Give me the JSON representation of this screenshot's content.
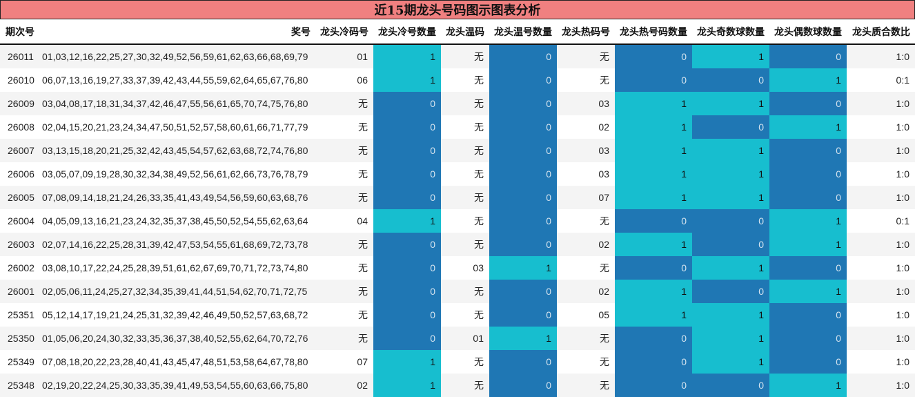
{
  "title": "近15期龙头号码图示图表分析",
  "colors": {
    "title_bg": "#f08080",
    "value_one": "#17becf",
    "value_zero": "#1f77b4",
    "row_alt": "#f4f4f4"
  },
  "columns": [
    "期次号",
    "奖号",
    "龙头冷码号",
    "龙头冷号数量",
    "龙头温码",
    "龙头温号数量",
    "龙头热码号",
    "龙头热号码数量",
    "龙头奇数球数量",
    "龙头偶数球数量",
    "龙头质合数比"
  ],
  "rows": [
    {
      "period": "26011",
      "numbers": "01,03,12,16,22,25,27,30,32,49,52,56,59,61,62,63,66,68,69,79",
      "cold_code": "01",
      "cold_count": "1",
      "warm_code": "无",
      "warm_count": "0",
      "hot_code": "无",
      "hot_count": "0",
      "odd_count": "1",
      "even_count": "0",
      "prime_ratio": "1:0"
    },
    {
      "period": "26010",
      "numbers": "06,07,13,16,19,27,33,37,39,42,43,44,55,59,62,64,65,67,76,80",
      "cold_code": "06",
      "cold_count": "1",
      "warm_code": "无",
      "warm_count": "0",
      "hot_code": "无",
      "hot_count": "0",
      "odd_count": "0",
      "even_count": "1",
      "prime_ratio": "0:1"
    },
    {
      "period": "26009",
      "numbers": "03,04,08,17,18,31,34,37,42,46,47,55,56,61,65,70,74,75,76,80",
      "cold_code": "无",
      "cold_count": "0",
      "warm_code": "无",
      "warm_count": "0",
      "hot_code": "03",
      "hot_count": "1",
      "odd_count": "1",
      "even_count": "0",
      "prime_ratio": "1:0"
    },
    {
      "period": "26008",
      "numbers": "02,04,15,20,21,23,24,34,47,50,51,52,57,58,60,61,66,71,77,79",
      "cold_code": "无",
      "cold_count": "0",
      "warm_code": "无",
      "warm_count": "0",
      "hot_code": "02",
      "hot_count": "1",
      "odd_count": "0",
      "even_count": "1",
      "prime_ratio": "1:0"
    },
    {
      "period": "26007",
      "numbers": "03,13,15,18,20,21,25,32,42,43,45,54,57,62,63,68,72,74,76,80",
      "cold_code": "无",
      "cold_count": "0",
      "warm_code": "无",
      "warm_count": "0",
      "hot_code": "03",
      "hot_count": "1",
      "odd_count": "1",
      "even_count": "0",
      "prime_ratio": "1:0"
    },
    {
      "period": "26006",
      "numbers": "03,05,07,09,19,28,30,32,34,38,49,52,56,61,62,66,73,76,78,79",
      "cold_code": "无",
      "cold_count": "0",
      "warm_code": "无",
      "warm_count": "0",
      "hot_code": "03",
      "hot_count": "1",
      "odd_count": "1",
      "even_count": "0",
      "prime_ratio": "1:0"
    },
    {
      "period": "26005",
      "numbers": "07,08,09,14,18,21,24,26,33,35,41,43,49,54,56,59,60,63,68,76",
      "cold_code": "无",
      "cold_count": "0",
      "warm_code": "无",
      "warm_count": "0",
      "hot_code": "07",
      "hot_count": "1",
      "odd_count": "1",
      "even_count": "0",
      "prime_ratio": "1:0"
    },
    {
      "period": "26004",
      "numbers": "04,05,09,13,16,21,23,24,32,35,37,38,45,50,52,54,55,62,63,64",
      "cold_code": "04",
      "cold_count": "1",
      "warm_code": "无",
      "warm_count": "0",
      "hot_code": "无",
      "hot_count": "0",
      "odd_count": "0",
      "even_count": "1",
      "prime_ratio": "0:1"
    },
    {
      "period": "26003",
      "numbers": "02,07,14,16,22,25,28,31,39,42,47,53,54,55,61,68,69,72,73,78",
      "cold_code": "无",
      "cold_count": "0",
      "warm_code": "无",
      "warm_count": "0",
      "hot_code": "02",
      "hot_count": "1",
      "odd_count": "0",
      "even_count": "1",
      "prime_ratio": "1:0"
    },
    {
      "period": "26002",
      "numbers": "03,08,10,17,22,24,25,28,39,51,61,62,67,69,70,71,72,73,74,80",
      "cold_code": "无",
      "cold_count": "0",
      "warm_code": "03",
      "warm_count": "1",
      "hot_code": "无",
      "hot_count": "0",
      "odd_count": "1",
      "even_count": "0",
      "prime_ratio": "1:0"
    },
    {
      "period": "26001",
      "numbers": "02,05,06,11,24,25,27,32,34,35,39,41,44,51,54,62,70,71,72,75",
      "cold_code": "无",
      "cold_count": "0",
      "warm_code": "无",
      "warm_count": "0",
      "hot_code": "02",
      "hot_count": "1",
      "odd_count": "0",
      "even_count": "1",
      "prime_ratio": "1:0"
    },
    {
      "period": "25351",
      "numbers": "05,12,14,17,19,21,24,25,31,32,39,42,46,49,50,52,57,63,68,72",
      "cold_code": "无",
      "cold_count": "0",
      "warm_code": "无",
      "warm_count": "0",
      "hot_code": "05",
      "hot_count": "1",
      "odd_count": "1",
      "even_count": "0",
      "prime_ratio": "1:0"
    },
    {
      "period": "25350",
      "numbers": "01,05,06,20,24,30,32,33,35,36,37,38,40,52,55,62,64,70,72,76",
      "cold_code": "无",
      "cold_count": "0",
      "warm_code": "01",
      "warm_count": "1",
      "hot_code": "无",
      "hot_count": "0",
      "odd_count": "1",
      "even_count": "0",
      "prime_ratio": "1:0"
    },
    {
      "period": "25349",
      "numbers": "07,08,18,20,22,23,28,40,41,43,45,47,48,51,53,58,64,67,78,80",
      "cold_code": "07",
      "cold_count": "1",
      "warm_code": "无",
      "warm_count": "0",
      "hot_code": "无",
      "hot_count": "0",
      "odd_count": "1",
      "even_count": "0",
      "prime_ratio": "1:0"
    },
    {
      "period": "25348",
      "numbers": "02,19,20,22,24,25,30,33,35,39,41,49,53,54,55,60,63,66,75,80",
      "cold_code": "02",
      "cold_count": "1",
      "warm_code": "无",
      "warm_count": "0",
      "hot_code": "无",
      "hot_count": "0",
      "odd_count": "0",
      "even_count": "1",
      "prime_ratio": "1:0"
    }
  ]
}
